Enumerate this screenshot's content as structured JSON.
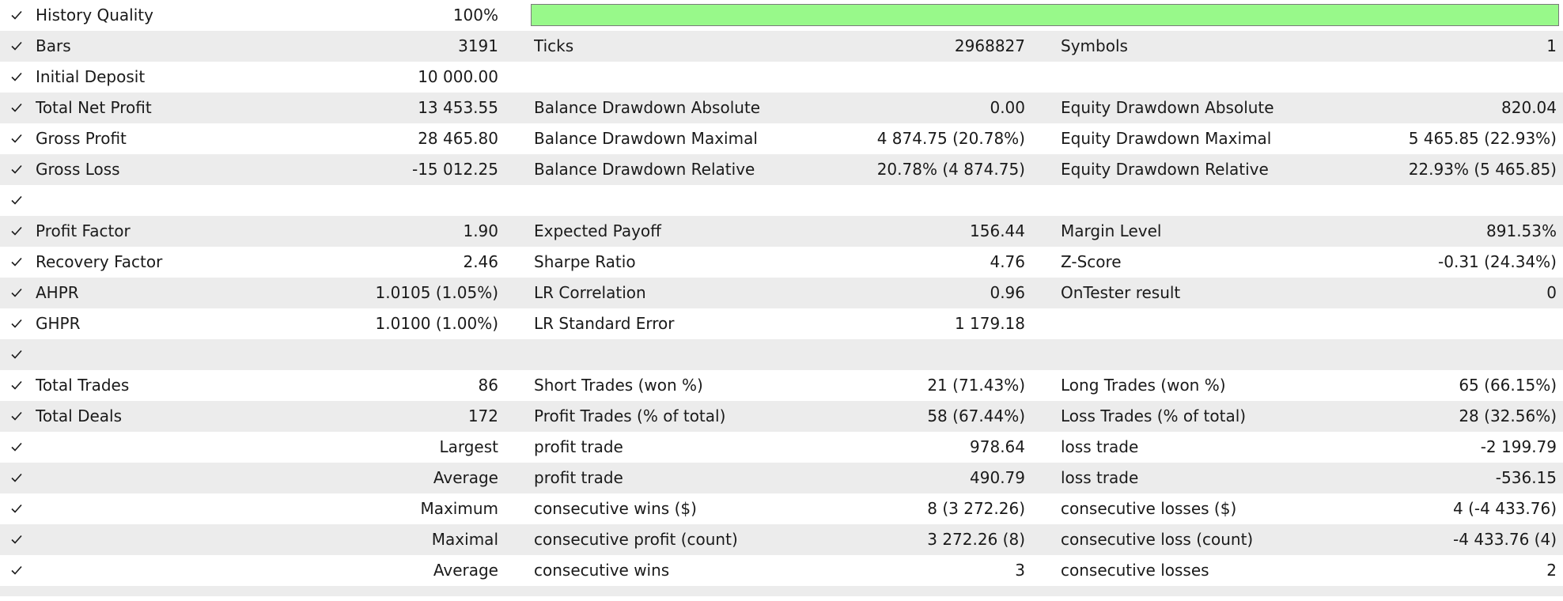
{
  "colors": {
    "row_alt_background": "#ececec",
    "row_background": "#ffffff",
    "quality_bar_fill": "#98f98a",
    "quality_bar_border": "#7a7a7a"
  },
  "icons": {
    "row_marker": "checkmark-icon"
  },
  "history_quality": {
    "label": "History Quality",
    "value": "100%",
    "bar_fraction": 1.0
  },
  "rows": [
    {
      "c1": {
        "label": "Bars",
        "value": "3191"
      },
      "c2": {
        "label": "Ticks",
        "value": "2968827"
      },
      "c3": {
        "label": "Symbols",
        "value": "1"
      }
    },
    {
      "c1": {
        "label": "Initial Deposit",
        "value": "10 000.00"
      }
    },
    {
      "c1": {
        "label": "Total Net Profit",
        "value": "13 453.55"
      },
      "c2": {
        "label": "Balance Drawdown Absolute",
        "value": "0.00"
      },
      "c3": {
        "label": "Equity Drawdown Absolute",
        "value": "820.04"
      }
    },
    {
      "c1": {
        "label": "Gross Profit",
        "value": "28 465.80"
      },
      "c2": {
        "label": "Balance Drawdown Maximal",
        "value": "4 874.75 (20.78%)"
      },
      "c3": {
        "label": "Equity Drawdown Maximal",
        "value": "5 465.85 (22.93%)"
      }
    },
    {
      "c1": {
        "label": "Gross Loss",
        "value": "-15 012.25"
      },
      "c2": {
        "label": "Balance Drawdown Relative",
        "value": "20.78% (4 874.75)"
      },
      "c3": {
        "label": "Equity Drawdown Relative",
        "value": "22.93% (5 465.85)"
      }
    },
    {},
    {
      "c1": {
        "label": "Profit Factor",
        "value": "1.90"
      },
      "c2": {
        "label": "Expected Payoff",
        "value": "156.44"
      },
      "c3": {
        "label": "Margin Level",
        "value": "891.53%"
      }
    },
    {
      "c1": {
        "label": "Recovery Factor",
        "value": "2.46"
      },
      "c2": {
        "label": "Sharpe Ratio",
        "value": "4.76"
      },
      "c3": {
        "label": "Z-Score",
        "value": "-0.31 (24.34%)"
      }
    },
    {
      "c1": {
        "label": "AHPR",
        "value": "1.0105 (1.05%)"
      },
      "c2": {
        "label": "LR Correlation",
        "value": "0.96"
      },
      "c3": {
        "label": "OnTester result",
        "value": "0"
      }
    },
    {
      "c1": {
        "label": "GHPR",
        "value": "1.0100 (1.00%)"
      },
      "c2": {
        "label": "LR Standard Error",
        "value": "1 179.18"
      }
    },
    {},
    {
      "c1": {
        "label": "Total Trades",
        "value": "86"
      },
      "c2": {
        "label": "Short Trades (won %)",
        "value": "21 (71.43%)"
      },
      "c3": {
        "label": "Long Trades (won %)",
        "value": "65 (66.15%)"
      }
    },
    {
      "c1": {
        "label": "Total Deals",
        "value": "172"
      },
      "c2": {
        "label": "Profit Trades (% of total)",
        "value": "58 (67.44%)"
      },
      "c3": {
        "label": "Loss Trades (% of total)",
        "value": "28 (32.56%)"
      }
    },
    {
      "c1": {
        "value": "Largest"
      },
      "c2": {
        "label": "profit trade",
        "value": "978.64"
      },
      "c3": {
        "label": "loss trade",
        "value": "-2 199.79"
      }
    },
    {
      "c1": {
        "value": "Average"
      },
      "c2": {
        "label": "profit trade",
        "value": "490.79"
      },
      "c3": {
        "label": "loss trade",
        "value": "-536.15"
      }
    },
    {
      "c1": {
        "value": "Maximum"
      },
      "c2": {
        "label": "consecutive wins ($)",
        "value": "8 (3 272.26)"
      },
      "c3": {
        "label": "consecutive losses ($)",
        "value": "4 (-4 433.76)"
      }
    },
    {
      "c1": {
        "value": "Maximal"
      },
      "c2": {
        "label": "consecutive profit (count)",
        "value": "3 272.26 (8)"
      },
      "c3": {
        "label": "consecutive loss (count)",
        "value": "-4 433.76 (4)"
      }
    },
    {
      "c1": {
        "value": "Average"
      },
      "c2": {
        "label": "consecutive wins",
        "value": "3"
      },
      "c3": {
        "label": "consecutive losses",
        "value": "2"
      }
    },
    {}
  ]
}
